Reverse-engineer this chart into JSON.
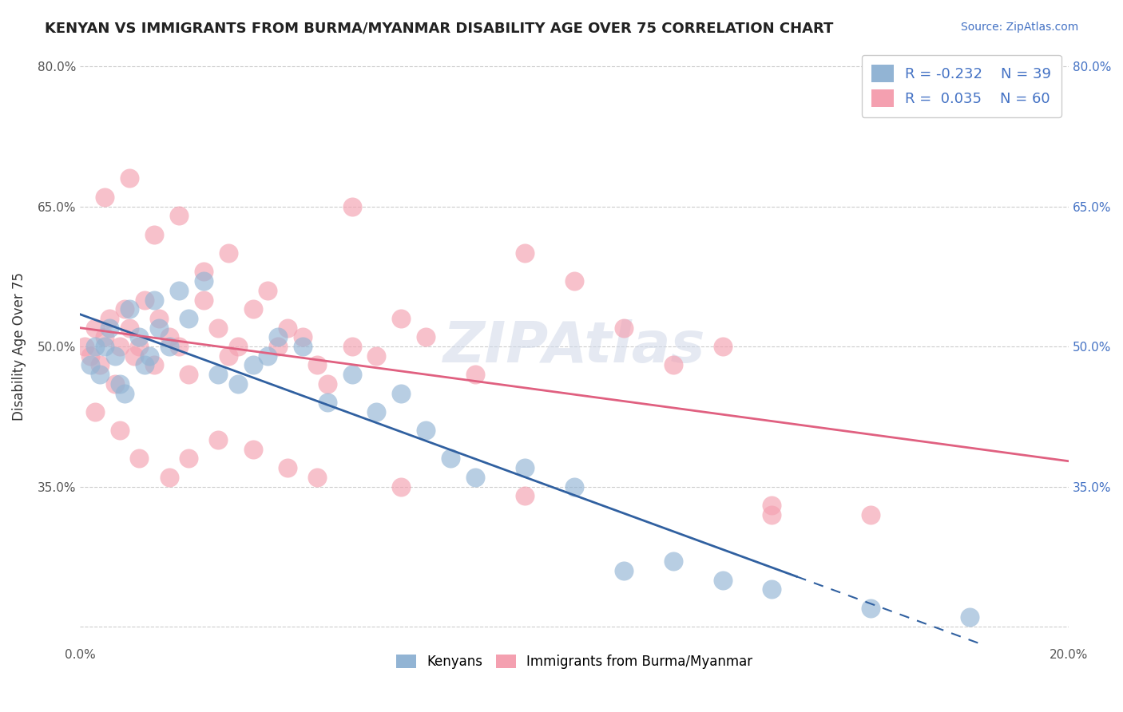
{
  "title": "KENYAN VS IMMIGRANTS FROM BURMA/MYANMAR DISABILITY AGE OVER 75 CORRELATION CHART",
  "source": "Source: ZipAtlas.com",
  "xlabel": "",
  "ylabel": "Disability Age Over 75",
  "xlim": [
    0.0,
    0.2
  ],
  "ylim": [
    0.18,
    0.82
  ],
  "ytick_positions": [
    0.2,
    0.35,
    0.5,
    0.65,
    0.8
  ],
  "ytick_labels": [
    "",
    "35.0%",
    "50.0%",
    "65.0%",
    "80.0%"
  ],
  "right_ytick_positions": [
    0.35,
    0.5,
    0.65,
    0.8
  ],
  "right_ytick_labels": [
    "35.0%",
    "50.0%",
    "65.0%",
    "80.0%"
  ],
  "legend_blue_r": "R = -0.232",
  "legend_blue_n": "N = 39",
  "legend_pink_r": "R =  0.035",
  "legend_pink_n": "N = 60",
  "watermark": "ZIPAtlas",
  "blue_color": "#92b4d4",
  "pink_color": "#f4a0b0",
  "blue_line_color": "#3060a0",
  "pink_line_color": "#e06080",
  "kenyans_x": [
    0.002,
    0.003,
    0.004,
    0.005,
    0.006,
    0.007,
    0.008,
    0.009,
    0.01,
    0.012,
    0.013,
    0.014,
    0.015,
    0.016,
    0.018,
    0.02,
    0.022,
    0.025,
    0.028,
    0.032,
    0.035,
    0.038,
    0.04,
    0.045,
    0.05,
    0.055,
    0.06,
    0.065,
    0.07,
    0.075,
    0.08,
    0.09,
    0.1,
    0.11,
    0.12,
    0.13,
    0.14,
    0.16,
    0.18
  ],
  "kenyans_y": [
    0.48,
    0.5,
    0.47,
    0.5,
    0.52,
    0.49,
    0.46,
    0.45,
    0.54,
    0.51,
    0.48,
    0.49,
    0.55,
    0.52,
    0.5,
    0.56,
    0.53,
    0.57,
    0.47,
    0.46,
    0.48,
    0.49,
    0.51,
    0.5,
    0.44,
    0.47,
    0.43,
    0.45,
    0.41,
    0.38,
    0.36,
    0.37,
    0.35,
    0.26,
    0.27,
    0.25,
    0.24,
    0.22,
    0.21
  ],
  "burma_x": [
    0.001,
    0.002,
    0.003,
    0.004,
    0.005,
    0.006,
    0.007,
    0.008,
    0.009,
    0.01,
    0.011,
    0.012,
    0.013,
    0.015,
    0.016,
    0.018,
    0.02,
    0.022,
    0.025,
    0.028,
    0.03,
    0.032,
    0.035,
    0.038,
    0.04,
    0.042,
    0.045,
    0.048,
    0.05,
    0.055,
    0.06,
    0.065,
    0.07,
    0.08,
    0.09,
    0.1,
    0.11,
    0.12,
    0.13,
    0.14,
    0.005,
    0.01,
    0.015,
    0.02,
    0.025,
    0.03,
    0.055,
    0.16,
    0.003,
    0.008,
    0.012,
    0.018,
    0.022,
    0.028,
    0.035,
    0.042,
    0.048,
    0.065,
    0.09,
    0.14
  ],
  "burma_y": [
    0.5,
    0.49,
    0.52,
    0.48,
    0.51,
    0.53,
    0.46,
    0.5,
    0.54,
    0.52,
    0.49,
    0.5,
    0.55,
    0.48,
    0.53,
    0.51,
    0.5,
    0.47,
    0.55,
    0.52,
    0.49,
    0.5,
    0.54,
    0.56,
    0.5,
    0.52,
    0.51,
    0.48,
    0.46,
    0.5,
    0.49,
    0.53,
    0.51,
    0.47,
    0.6,
    0.57,
    0.52,
    0.48,
    0.5,
    0.32,
    0.66,
    0.68,
    0.62,
    0.64,
    0.58,
    0.6,
    0.65,
    0.32,
    0.43,
    0.41,
    0.38,
    0.36,
    0.38,
    0.4,
    0.39,
    0.37,
    0.36,
    0.35,
    0.34,
    0.33
  ]
}
